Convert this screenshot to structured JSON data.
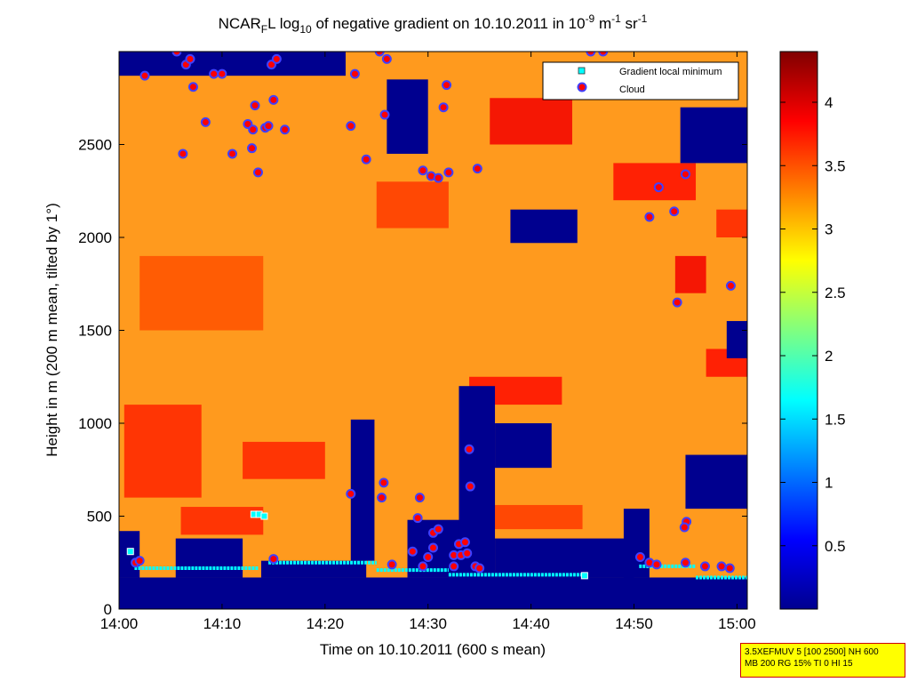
{
  "chart_data": {
    "type": "heatmap",
    "title": {
      "prefix": "NCAR",
      "prefix_sub": "F",
      "text1": "L log",
      "log_sub": "10",
      "text2": " of negative gradient on 10.10.2011 in 10",
      "exp1": "-9",
      "text3": " m",
      "exp2": "-1",
      "text4": " sr",
      "exp3": "-1"
    },
    "xlabel": "Time on 10.10.2011 (600 s mean)",
    "ylabel": "Height in m (200 m mean, tilted by 1°)",
    "xlim": [
      0,
      61
    ],
    "ylim": [
      0,
      3000
    ],
    "x_ticks": [
      {
        "v": 0,
        "label": "14:00"
      },
      {
        "v": 10,
        "label": "14:10"
      },
      {
        "v": 20,
        "label": "14:20"
      },
      {
        "v": 30,
        "label": "14:30"
      },
      {
        "v": 40,
        "label": "14:40"
      },
      {
        "v": 50,
        "label": "14:50"
      },
      {
        "v": 60,
        "label": "15:00"
      }
    ],
    "y_ticks": [
      {
        "v": 0,
        "label": "0"
      },
      {
        "v": 500,
        "label": "500"
      },
      {
        "v": 1000,
        "label": "1000"
      },
      {
        "v": 1500,
        "label": "1500"
      },
      {
        "v": 2000,
        "label": "2000"
      },
      {
        "v": 2500,
        "label": "2500"
      }
    ],
    "colorbar": {
      "range": [
        0,
        4.4
      ],
      "ticks": [
        {
          "v": 0.5,
          "label": "0.5"
        },
        {
          "v": 1,
          "label": "1"
        },
        {
          "v": 1.5,
          "label": "1.5"
        },
        {
          "v": 2,
          "label": "2"
        },
        {
          "v": 2.5,
          "label": "2.5"
        },
        {
          "v": 3,
          "label": "3"
        },
        {
          "v": 3.5,
          "label": "3.5"
        },
        {
          "v": 4,
          "label": "4"
        }
      ]
    },
    "legend": {
      "position": "top-right",
      "entries": [
        {
          "label": "Gradient local minimum",
          "marker": "square",
          "color": "#00ffff"
        },
        {
          "label": "Cloud",
          "marker": "circle",
          "color": "#ff0000"
        }
      ]
    },
    "colors": {
      "background_low": "#00008f",
      "orange": "#ff9a1e",
      "red": "#e83a0a",
      "dark_red": "#9a0000",
      "cyan": "#00ffff"
    },
    "low_value_regions": [
      {
        "x": [
          0,
          61
        ],
        "y": [
          0,
          170
        ]
      },
      {
        "x": [
          0,
          2
        ],
        "y": [
          170,
          420
        ]
      },
      {
        "x": [
          5.5,
          12
        ],
        "y": [
          170,
          380
        ]
      },
      {
        "x": [
          13.8,
          24
        ],
        "y": [
          170,
          260
        ]
      },
      {
        "x": [
          22.5,
          24.8
        ],
        "y": [
          260,
          1020
        ]
      },
      {
        "x": [
          28,
          36
        ],
        "y": [
          170,
          480
        ]
      },
      {
        "x": [
          33,
          36.5
        ],
        "y": [
          170,
          1200
        ]
      },
      {
        "x": [
          36.5,
          50
        ],
        "y": [
          170,
          380
        ]
      },
      {
        "x": [
          49,
          51.5
        ],
        "y": [
          170,
          540
        ]
      },
      {
        "x": [
          55,
          61
        ],
        "y": [
          540,
          830
        ]
      },
      {
        "x": [
          59,
          61
        ],
        "y": [
          1350,
          1550
        ]
      },
      {
        "x": [
          0,
          22
        ],
        "y": [
          2870,
          3000
        ]
      },
      {
        "x": [
          38,
          44.5
        ],
        "y": [
          1970,
          2150
        ]
      },
      {
        "x": [
          54.5,
          61
        ],
        "y": [
          2400,
          2700
        ]
      },
      {
        "x": [
          26,
          30
        ],
        "y": [
          2450,
          2850
        ]
      },
      {
        "x": [
          36.5,
          42
        ],
        "y": [
          760,
          1000
        ]
      }
    ],
    "high_value_regions": [
      {
        "x": [
          0.5,
          8
        ],
        "y": [
          600,
          1100
        ],
        "level": 3.7
      },
      {
        "x": [
          2,
          14
        ],
        "y": [
          1500,
          1900
        ],
        "level": 3.5
      },
      {
        "x": [
          12,
          20
        ],
        "y": [
          700,
          900
        ],
        "level": 3.7
      },
      {
        "x": [
          36,
          44
        ],
        "y": [
          2500,
          2750
        ],
        "level": 3.9
      },
      {
        "x": [
          34,
          43
        ],
        "y": [
          1100,
          1250
        ],
        "level": 3.8
      },
      {
        "x": [
          35,
          45
        ],
        "y": [
          430,
          560
        ],
        "level": 3.6
      },
      {
        "x": [
          54,
          57
        ],
        "y": [
          1700,
          1900
        ],
        "level": 3.9
      },
      {
        "x": [
          57,
          61
        ],
        "y": [
          1250,
          1400
        ],
        "level": 3.8
      },
      {
        "x": [
          58,
          61
        ],
        "y": [
          2000,
          2150
        ],
        "level": 3.7
      },
      {
        "x": [
          48,
          56
        ],
        "y": [
          2200,
          2400
        ],
        "level": 3.8
      },
      {
        "x": [
          25,
          32
        ],
        "y": [
          2050,
          2300
        ],
        "level": 3.6
      },
      {
        "x": [
          6,
          14
        ],
        "y": [
          400,
          550
        ],
        "level": 3.7
      }
    ],
    "gradient_local_minimum": [
      {
        "x": 1.1,
        "y": 310
      },
      {
        "x": 13.1,
        "y": 510
      },
      {
        "x": 13.6,
        "y": 510
      },
      {
        "x": 14.1,
        "y": 500
      },
      {
        "x": 45.2,
        "y": 180
      }
    ],
    "gradient_minimum_lines": [
      {
        "x1": 1.5,
        "x2": 13.5,
        "y": 220
      },
      {
        "x1": 14.5,
        "x2": 25,
        "y": 250
      },
      {
        "x1": 25,
        "x2": 32,
        "y": 210
      },
      {
        "x1": 32,
        "x2": 45.5,
        "y": 185
      },
      {
        "x1": 50.5,
        "x2": 56,
        "y": 230
      },
      {
        "x1": 56,
        "x2": 61,
        "y": 170
      }
    ],
    "cloud": [
      {
        "x": 2.5,
        "y": 2870
      },
      {
        "x": 5.6,
        "y": 3000
      },
      {
        "x": 6.5,
        "y": 2930
      },
      {
        "x": 6.9,
        "y": 2960
      },
      {
        "x": 7.2,
        "y": 2810
      },
      {
        "x": 9.2,
        "y": 2880
      },
      {
        "x": 10.0,
        "y": 2880
      },
      {
        "x": 13.2,
        "y": 2710
      },
      {
        "x": 14.2,
        "y": 2590
      },
      {
        "x": 14.8,
        "y": 2930
      },
      {
        "x": 15.3,
        "y": 2960
      },
      {
        "x": 15.0,
        "y": 2740
      },
      {
        "x": 12.5,
        "y": 2610
      },
      {
        "x": 12.9,
        "y": 2480
      },
      {
        "x": 13.5,
        "y": 2350
      },
      {
        "x": 11.0,
        "y": 2450
      },
      {
        "x": 6.2,
        "y": 2450
      },
      {
        "x": 16.1,
        "y": 2580
      },
      {
        "x": 14.5,
        "y": 2600
      },
      {
        "x": 8.4,
        "y": 2620
      },
      {
        "x": 13.0,
        "y": 2580
      },
      {
        "x": 22.5,
        "y": 2600
      },
      {
        "x": 22.9,
        "y": 2880
      },
      {
        "x": 24.0,
        "y": 2420
      },
      {
        "x": 25.3,
        "y": 3000
      },
      {
        "x": 26.0,
        "y": 2960
      },
      {
        "x": 25.8,
        "y": 2660
      },
      {
        "x": 29.5,
        "y": 2360
      },
      {
        "x": 30.3,
        "y": 2330
      },
      {
        "x": 31.0,
        "y": 2320
      },
      {
        "x": 31.5,
        "y": 2700
      },
      {
        "x": 31.8,
        "y": 2820
      },
      {
        "x": 32.0,
        "y": 2350
      },
      {
        "x": 34.8,
        "y": 2370
      },
      {
        "x": 45.8,
        "y": 3000
      },
      {
        "x": 47.0,
        "y": 3000
      },
      {
        "x": 51.5,
        "y": 2110
      },
      {
        "x": 52.4,
        "y": 2270
      },
      {
        "x": 53.9,
        "y": 2140
      },
      {
        "x": 55.0,
        "y": 2340
      },
      {
        "x": 54.2,
        "y": 1650
      },
      {
        "x": 59.4,
        "y": 1740
      },
      {
        "x": 22.5,
        "y": 620
      },
      {
        "x": 25.5,
        "y": 600
      },
      {
        "x": 25.7,
        "y": 680
      },
      {
        "x": 26.5,
        "y": 240
      },
      {
        "x": 28.5,
        "y": 310
      },
      {
        "x": 29.2,
        "y": 600
      },
      {
        "x": 29.0,
        "y": 490
      },
      {
        "x": 30.5,
        "y": 410
      },
      {
        "x": 31.0,
        "y": 430
      },
      {
        "x": 30.5,
        "y": 330
      },
      {
        "x": 30.0,
        "y": 280
      },
      {
        "x": 33.0,
        "y": 350
      },
      {
        "x": 33.6,
        "y": 360
      },
      {
        "x": 32.5,
        "y": 290
      },
      {
        "x": 33.2,
        "y": 290
      },
      {
        "x": 33.8,
        "y": 300
      },
      {
        "x": 34.0,
        "y": 860
      },
      {
        "x": 34.1,
        "y": 660
      },
      {
        "x": 34.6,
        "y": 230
      },
      {
        "x": 35.0,
        "y": 220
      },
      {
        "x": 32.5,
        "y": 230
      },
      {
        "x": 29.5,
        "y": 230
      },
      {
        "x": 1.6,
        "y": 250
      },
      {
        "x": 2.0,
        "y": 260
      },
      {
        "x": 15.0,
        "y": 270
      },
      {
        "x": 50.6,
        "y": 280
      },
      {
        "x": 51.5,
        "y": 250
      },
      {
        "x": 52.2,
        "y": 240
      },
      {
        "x": 55.0,
        "y": 250
      },
      {
        "x": 55.1,
        "y": 470
      },
      {
        "x": 54.9,
        "y": 440
      },
      {
        "x": 56.9,
        "y": 230
      },
      {
        "x": 58.5,
        "y": 230
      },
      {
        "x": 59.3,
        "y": 220
      }
    ]
  },
  "info_box": {
    "line1": "3.5XEFMUV 5 [100 2500] NH 600",
    "line2": "MB 200 RG 15% TI 0 HI 15"
  }
}
